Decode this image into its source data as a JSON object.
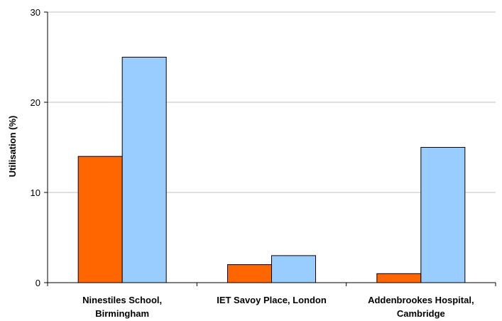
{
  "chart_data": {
    "type": "bar",
    "title": "",
    "xlabel": "",
    "ylabel": "Utilisation (%)",
    "ylim": [
      0,
      30
    ],
    "yticks": [
      0,
      10,
      20,
      30
    ],
    "grid": true,
    "categories": [
      [
        "Ninestiles School,",
        "Birmingham"
      ],
      [
        "IET Savoy Place, London"
      ],
      [
        "Addenbrookes Hospital,",
        "Cambridge"
      ]
    ],
    "series": [
      {
        "values": [
          14,
          2,
          1
        ],
        "color": "#ff6600"
      },
      {
        "values": [
          25,
          3,
          15
        ],
        "color": "#99ccff"
      }
    ]
  }
}
